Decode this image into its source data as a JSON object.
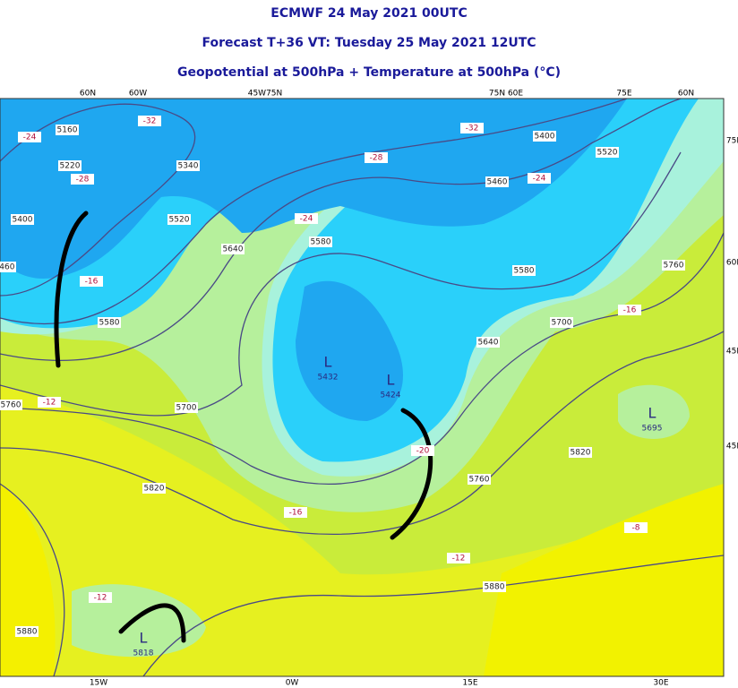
{
  "header": {
    "line1": "ECMWF 24 May 2021 00UTC",
    "line2": "Forecast T+36 VT: Tuesday 25 May 2021 12UTC",
    "line3": "Geopotential at 500hPa + Temperature at 500hPa (°C)"
  },
  "map": {
    "top_labels": [
      "60N",
      "60W",
      "45W75N",
      "75N 60E",
      "75E",
      "60N"
    ],
    "bottom_labels": [
      "15W",
      "0W",
      "15E",
      "30E"
    ],
    "right_labels": [
      "75N",
      "60N",
      "45N",
      "45N"
    ],
    "height_labels": [
      5160,
      5220,
      5340,
      5400,
      5460,
      5520,
      5580,
      5640,
      5700,
      5760,
      5820,
      5880,
      5580,
      5460,
      5400,
      5520,
      5580,
      5640,
      5700,
      5760,
      5820,
      5760,
      5880
    ],
    "temperature_labels": [
      -24,
      -32,
      -28,
      -16,
      -28,
      -24,
      -32,
      -24,
      -16,
      -12,
      -20,
      -16,
      -12,
      -12,
      -8
    ],
    "lows": [
      {
        "symbol": "L",
        "value": 5432
      },
      {
        "symbol": "L",
        "value": 5424
      },
      {
        "symbol": "L",
        "value": 5695
      },
      {
        "symbol": "L",
        "value": 5818
      }
    ]
  }
}
